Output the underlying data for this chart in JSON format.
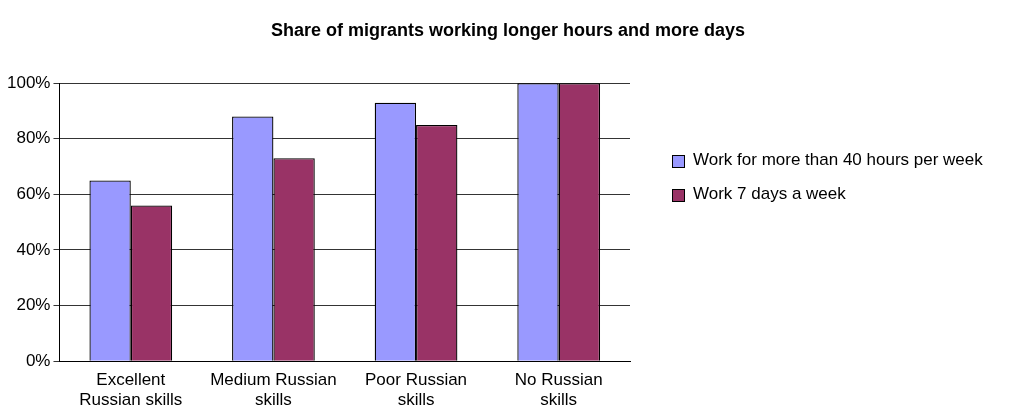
{
  "chart_data": {
    "type": "bar",
    "title": "Share of migrants working longer hours and more days",
    "categories": [
      "Excellent Russian skills",
      "Medium Russian skills",
      "Poor Russian skills",
      "No Russian skills"
    ],
    "series": [
      {
        "name": "Work for more than 40 hours per week",
        "color": "#9999ff",
        "values": [
          65,
          88,
          93,
          100
        ]
      },
      {
        "name": "Work 7 days a week",
        "color": "#993366",
        "values": [
          56,
          73,
          85,
          100
        ]
      }
    ],
    "ylim": [
      0,
      100
    ],
    "yticks": [
      {
        "value": 0,
        "label": "0%"
      },
      {
        "value": 20,
        "label": "20%"
      },
      {
        "value": 40,
        "label": "40%"
      },
      {
        "value": 60,
        "label": "60%"
      },
      {
        "value": 80,
        "label": "80%"
      },
      {
        "value": 100,
        "label": "100%"
      }
    ],
    "grid": "y",
    "legend": "right"
  }
}
